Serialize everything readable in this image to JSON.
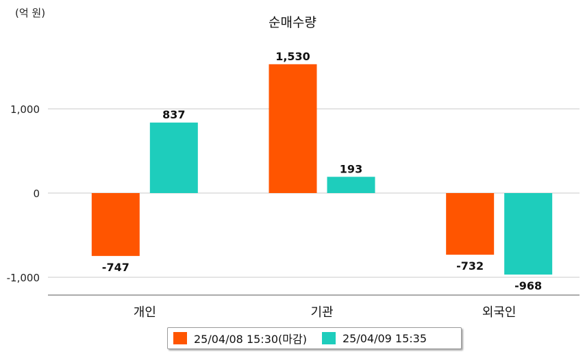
{
  "chart_data": {
    "type": "bar",
    "title": "순매수량",
    "unit_label": "(억 원)",
    "categories": [
      "개인",
      "기관",
      "외국인"
    ],
    "series": [
      {
        "name": "25/04/08 15:30(마감)",
        "color": "#ff5500",
        "values": [
          -747,
          1530,
          -732
        ]
      },
      {
        "name": "25/04/09 15:35",
        "color": "#1ecdbc",
        "values": [
          837,
          193,
          -968
        ]
      }
    ],
    "data_labels": [
      [
        "-747",
        "1,530",
        "-732"
      ],
      [
        "837",
        "193",
        "-968"
      ]
    ],
    "yticks": [
      1000,
      0,
      -1000
    ],
    "ytick_labels": [
      "1,000",
      "0",
      "-1,000"
    ],
    "ylim": [
      -1200,
      1650
    ],
    "grid": true,
    "legend_position": "bottom"
  }
}
